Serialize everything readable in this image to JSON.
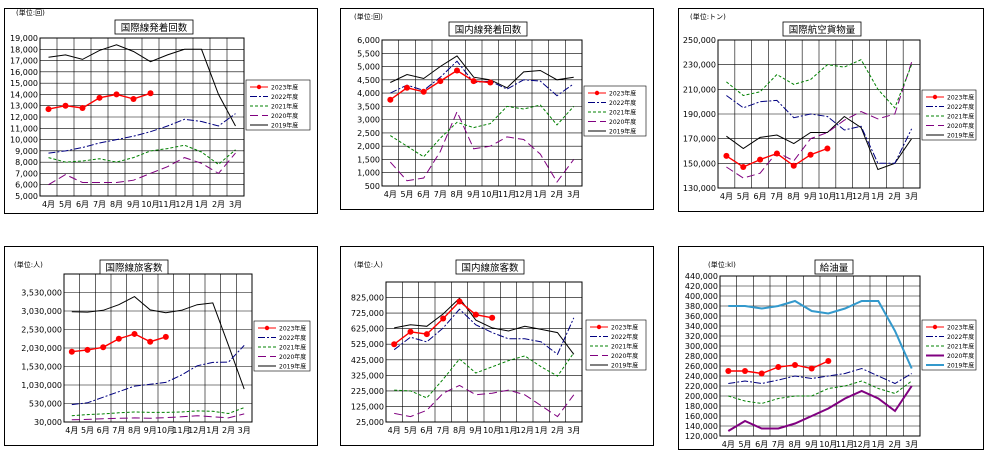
{
  "months": [
    "4月",
    "5月",
    "6月",
    "7月",
    "8月",
    "9月",
    "10月",
    "11月",
    "12月",
    "1月",
    "2月",
    "3月"
  ],
  "series_styles": {
    "2023": {
      "color": "#ff0000",
      "dash": "",
      "marker": true
    },
    "2022": {
      "color": "#000080",
      "dash": "7,2,2,2"
    },
    "2021": {
      "color": "#008000",
      "dash": "3,2"
    },
    "2020": {
      "color": "#800080",
      "dash": "8,4"
    },
    "2019": {
      "color": "#000000",
      "dash": ""
    }
  },
  "chart_data": [
    {
      "type": "line",
      "title": "国際線発着回数",
      "unit": "(単位:回)",
      "ylim": [
        5000,
        19000
      ],
      "yticks": [
        5000,
        6000,
        7000,
        8000,
        9000,
        10000,
        11000,
        12000,
        13000,
        14000,
        15000,
        16000,
        17000,
        18000,
        19000
      ],
      "ytick_labels": [
        "5,000",
        "6,000",
        "7,000",
        "8,000",
        "9,000",
        "10,000",
        "11,000",
        "12,000",
        "13,000",
        "14,000",
        "15,000",
        "16,000",
        "17,000",
        "18,000",
        "19,000"
      ],
      "legend": [
        "2023年度",
        "2022年度",
        "2021年度",
        "2020年度",
        "2019年度"
      ],
      "series": [
        {
          "name": "2023年度",
          "key": "2023",
          "values": [
            12700,
            13000,
            12800,
            13700,
            14000,
            13600,
            14100
          ]
        },
        {
          "name": "2022年度",
          "key": "2022",
          "values": [
            8800,
            9000,
            9300,
            9700,
            10000,
            10300,
            10700,
            11200,
            11800,
            11600,
            11200,
            12300
          ]
        },
        {
          "name": "2021年度",
          "key": "2021",
          "values": [
            8400,
            8000,
            8100,
            8300,
            8000,
            8400,
            9000,
            9200,
            9500,
            8900,
            7800,
            9100
          ]
        },
        {
          "name": "2020年度",
          "key": "2020",
          "values": [
            6000,
            6900,
            6200,
            6200,
            6200,
            6400,
            7000,
            7600,
            8400,
            7900,
            7000,
            8800
          ]
        },
        {
          "name": "2019年度",
          "key": "2019",
          "values": [
            17300,
            17500,
            17100,
            17900,
            18400,
            17800,
            16900,
            17500,
            18000,
            18000,
            14000,
            11200
          ]
        }
      ]
    },
    {
      "type": "line",
      "title": "国内線発着回数",
      "unit": "(単位:回)",
      "ylim": [
        500,
        6000
      ],
      "yticks": [
        500,
        1000,
        1500,
        2000,
        2500,
        3000,
        3500,
        4000,
        4500,
        5000,
        5500,
        6000
      ],
      "ytick_labels": [
        "500",
        "1,000",
        "1,500",
        "2,000",
        "2,500",
        "3,000",
        "3,500",
        "4,000",
        "4,500",
        "5,000",
        "5,500",
        "6,000"
      ],
      "legend": [
        "2023年度",
        "2022年度",
        "2021年度",
        "2020年度",
        "2019年度"
      ],
      "series": [
        {
          "name": "2023年度",
          "key": "2023",
          "values": [
            3750,
            4200,
            4050,
            4450,
            4850,
            4450,
            4400
          ]
        },
        {
          "name": "2022年度",
          "key": "2022",
          "values": [
            4000,
            4300,
            4100,
            4600,
            5200,
            4400,
            4450,
            4150,
            4500,
            4450,
            3900,
            4350
          ]
        },
        {
          "name": "2021年度",
          "key": "2021",
          "values": [
            2400,
            2000,
            1600,
            2300,
            2900,
            2700,
            2850,
            3500,
            3400,
            3550,
            2800,
            3500
          ]
        },
        {
          "name": "2020年度",
          "key": "2020",
          "values": [
            1400,
            700,
            800,
            1800,
            3300,
            1900,
            2000,
            2350,
            2250,
            1700,
            650,
            1500
          ]
        },
        {
          "name": "2019年度",
          "key": "2019",
          "values": [
            4400,
            4700,
            4550,
            5000,
            5400,
            4600,
            4500,
            4200,
            4800,
            4850,
            4500,
            4600
          ]
        }
      ]
    },
    {
      "type": "line",
      "title": "国際航空貨物量",
      "unit": "(単位:トン)",
      "ylim": [
        130000,
        250000
      ],
      "yticks": [
        130000,
        150000,
        170000,
        190000,
        210000,
        230000,
        250000
      ],
      "ytick_labels": [
        "130,000",
        "150,000",
        "170,000",
        "190,000",
        "210,000",
        "230,000",
        "250,000"
      ],
      "legend": [
        "2023年度",
        "2022年度",
        "2021年度",
        "2020年度",
        "2019年度"
      ],
      "series": [
        {
          "name": "2023年度",
          "key": "2023",
          "values": [
            156000,
            147000,
            153000,
            158000,
            148000,
            157000,
            162000
          ]
        },
        {
          "name": "2022年度",
          "key": "2022",
          "values": [
            205000,
            195000,
            200000,
            201000,
            187000,
            190000,
            188000,
            177000,
            180000,
            150000,
            150000,
            178000
          ]
        },
        {
          "name": "2021年度",
          "key": "2021",
          "values": [
            216000,
            205000,
            208000,
            222000,
            214000,
            218000,
            230000,
            228000,
            234000,
            210000,
            195000,
            230000
          ]
        },
        {
          "name": "2020年度",
          "key": "2020",
          "values": [
            147000,
            138000,
            142000,
            159000,
            152000,
            170000,
            175000,
            185000,
            192000,
            186000,
            190000,
            232000
          ]
        },
        {
          "name": "2019年度",
          "key": "2019",
          "values": [
            172000,
            162000,
            171000,
            173000,
            166000,
            175000,
            175000,
            188000,
            179000,
            145000,
            150000,
            170000
          ]
        }
      ]
    },
    {
      "type": "line",
      "title": "国際線旅客数",
      "unit": "(単位:人)",
      "ylim": [
        30000,
        4030000
      ],
      "yticks": [
        30000,
        530000,
        1030000,
        1530000,
        2030000,
        2530000,
        3030000,
        3530000
      ],
      "ytick_labels": [
        "30,000",
        "530,000",
        "1,030,000",
        "1,530,000",
        "2,030,000",
        "2,530,000",
        "3,030,000",
        "3,530,000"
      ],
      "legend": [
        "2023年度",
        "2022年度",
        "2021年度",
        "2020年度",
        "2019年度"
      ],
      "series": [
        {
          "name": "2023年度",
          "key": "2023",
          "values": [
            1930000,
            1980000,
            2050000,
            2280000,
            2410000,
            2200000,
            2330000
          ]
        },
        {
          "name": "2022年度",
          "key": "2022",
          "values": [
            500000,
            550000,
            700000,
            850000,
            1000000,
            1050000,
            1100000,
            1300000,
            1550000,
            1640000,
            1650000,
            2100000
          ]
        },
        {
          "name": "2021年度",
          "key": "2021",
          "values": [
            200000,
            230000,
            250000,
            280000,
            300000,
            290000,
            290000,
            300000,
            330000,
            320000,
            260000,
            420000
          ]
        },
        {
          "name": "2020年度",
          "key": "2020",
          "values": [
            90000,
            100000,
            120000,
            130000,
            140000,
            130000,
            150000,
            170000,
            200000,
            170000,
            140000,
            250000
          ]
        },
        {
          "name": "2019年度",
          "key": "2019",
          "values": [
            3010000,
            3000000,
            3050000,
            3200000,
            3420000,
            3060000,
            2980000,
            3050000,
            3200000,
            3250000,
            2100000,
            920000
          ]
        }
      ]
    },
    {
      "type": "line",
      "title": "国内線旅客数",
      "unit": "(単位:人)",
      "ylim": [
        25000,
        925000
      ],
      "yticks": [
        25000,
        125000,
        225000,
        325000,
        425000,
        525000,
        625000,
        725000,
        825000
      ],
      "ytick_labels": [
        "25,000",
        "125,000",
        "225,000",
        "325,000",
        "425,000",
        "525,000",
        "625,000",
        "725,000",
        "825,000"
      ],
      "legend": [
        "2023年度",
        "2022年度",
        "2021年度",
        "2020年度",
        "2019年度"
      ],
      "series": [
        {
          "name": "2023年度",
          "key": "2023",
          "values": [
            525000,
            605000,
            590000,
            690000,
            800000,
            715000,
            695000
          ]
        },
        {
          "name": "2022年度",
          "key": "2022",
          "values": [
            490000,
            570000,
            540000,
            630000,
            750000,
            650000,
            600000,
            560000,
            560000,
            540000,
            460000,
            695000
          ]
        },
        {
          "name": "2021年度",
          "key": "2021",
          "values": [
            230000,
            225000,
            180000,
            300000,
            430000,
            340000,
            380000,
            420000,
            450000,
            380000,
            320000,
            470000
          ]
        },
        {
          "name": "2020年度",
          "key": "2020",
          "values": [
            80000,
            60000,
            100000,
            210000,
            260000,
            200000,
            210000,
            230000,
            200000,
            130000,
            60000,
            200000
          ]
        },
        {
          "name": "2019年度",
          "key": "2019",
          "values": [
            630000,
            650000,
            640000,
            720000,
            820000,
            680000,
            630000,
            610000,
            640000,
            620000,
            600000,
            460000
          ]
        }
      ]
    },
    {
      "type": "line",
      "title": "給油量",
      "unit": "(単位:kl)",
      "ylim": [
        120000,
        440000
      ],
      "yticks": [
        120000,
        140000,
        160000,
        180000,
        200000,
        220000,
        240000,
        260000,
        280000,
        300000,
        320000,
        340000,
        360000,
        380000,
        400000,
        420000,
        440000
      ],
      "ytick_labels": [
        "120,000",
        "140,000",
        "160,000",
        "180,000",
        "200,000",
        "220,000",
        "240,000",
        "260,000",
        "280,000",
        "300,000",
        "320,000",
        "340,000",
        "360,000",
        "380,000",
        "400,000",
        "420,000",
        "440,000"
      ],
      "legend": [
        "2023年度",
        "2022年度",
        "2021年度",
        "2020年度",
        "2019年度"
      ],
      "series": [
        {
          "name": "2023年度",
          "key": "2023",
          "values": [
            250000,
            250000,
            245000,
            258000,
            262000,
            255000,
            270000
          ]
        },
        {
          "name": "2022年度",
          "key": "2022",
          "values": [
            225000,
            230000,
            225000,
            232000,
            240000,
            235000,
            240000,
            245000,
            255000,
            240000,
            225000,
            245000
          ]
        },
        {
          "name": "2021年度",
          "key": "2021",
          "values": [
            200000,
            190000,
            185000,
            195000,
            200000,
            200000,
            215000,
            220000,
            230000,
            215000,
            205000,
            230000
          ]
        },
        {
          "name": "2020年度",
          "key": "2020",
          "values": [
            130000,
            150000,
            135000,
            135000,
            145000,
            160000,
            175000,
            195000,
            210000,
            195000,
            170000,
            220000
          ]
        },
        {
          "name": "2019年度",
          "key": "2019",
          "values": [
            380000,
            380000,
            375000,
            380000,
            390000,
            370000,
            365000,
            375000,
            390000,
            390000,
            330000,
            255000
          ]
        }
      ]
    }
  ]
}
